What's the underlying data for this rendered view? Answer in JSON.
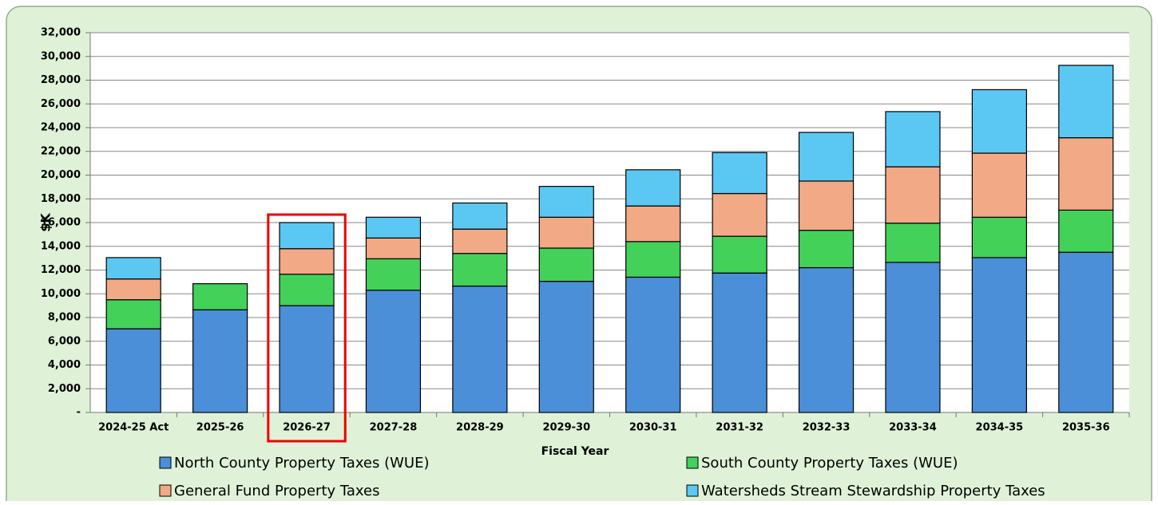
{
  "chart_data": {
    "type": "stacked-bar",
    "y_label": "$K",
    "x_label": "Fiscal Year",
    "categories": [
      "2024-25 Act",
      "2025-26",
      "2026-27",
      "2027-28",
      "2028-29",
      "2029-30",
      "2030-31",
      "2031-32",
      "2032-33",
      "2033-34",
      "2034-35",
      "2035-36"
    ],
    "series": [
      {
        "name": "North County Property Taxes (WUE)",
        "color": "#4a8fd8",
        "values": [
          7050,
          8650,
          9000,
          10300,
          10650,
          11050,
          11400,
          11750,
          12200,
          12650,
          13050,
          13500
        ]
      },
      {
        "name": "South County Property Taxes (WUE)",
        "color": "#43d159",
        "values": [
          2450,
          2200,
          2650,
          2650,
          2750,
          2800,
          3000,
          3100,
          3150,
          3300,
          3400,
          3550
        ]
      },
      {
        "name": "General Fund Property Taxes",
        "color": "#f2a985",
        "values": [
          1750,
          0,
          2150,
          1750,
          2050,
          2600,
          3000,
          3600,
          4150,
          4750,
          5400,
          6100
        ]
      },
      {
        "name": "Watersheds Stream Stewardship Property Taxes",
        "color": "#5bc8f3",
        "values": [
          1800,
          0,
          2200,
          1750,
          2200,
          2600,
          3050,
          3450,
          4100,
          4650,
          5350,
          6100
        ]
      }
    ],
    "ylim": [
      0,
      32000
    ],
    "yticks": [
      {
        "value": 0,
        "label": "-"
      },
      {
        "value": 2000,
        "label": "2,000"
      },
      {
        "value": 4000,
        "label": "4,000"
      },
      {
        "value": 6000,
        "label": "6,000"
      },
      {
        "value": 8000,
        "label": "8,000"
      },
      {
        "value": 10000,
        "label": "10,000"
      },
      {
        "value": 12000,
        "label": "12,000"
      },
      {
        "value": 14000,
        "label": "14,000"
      },
      {
        "value": 16000,
        "label": "16,000"
      },
      {
        "value": 18000,
        "label": "18,000"
      },
      {
        "value": 20000,
        "label": "20,000"
      },
      {
        "value": 22000,
        "label": "22,000"
      },
      {
        "value": 24000,
        "label": "24,000"
      },
      {
        "value": 26000,
        "label": "26,000"
      },
      {
        "value": 28000,
        "label": "28,000"
      },
      {
        "value": 30000,
        "label": "30,000"
      },
      {
        "value": 32000,
        "label": "32,000"
      }
    ],
    "grid": true
  }
}
